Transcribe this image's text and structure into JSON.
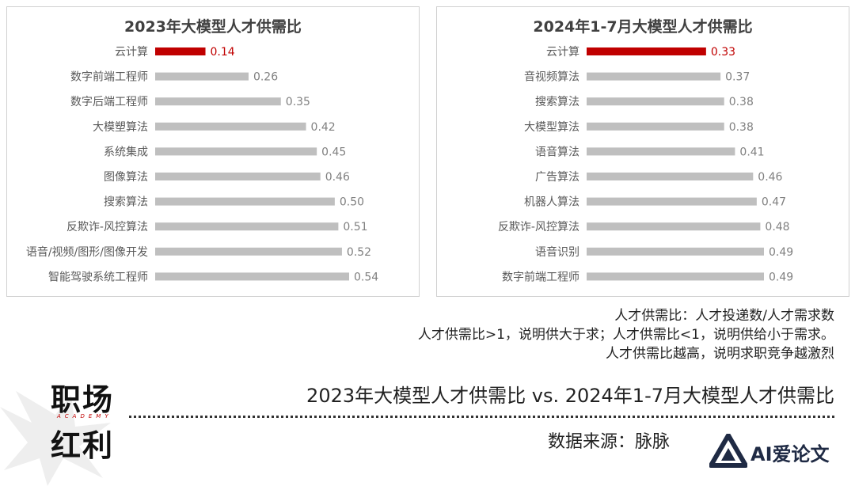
{
  "chart_data": [
    {
      "type": "bar",
      "orientation": "horizontal",
      "title": "2023年大模型人才供需比",
      "categories": [
        "云计算",
        "数字前端工程师",
        "数字后端工程师",
        "大模塑算法",
        "系统集成",
        "图像算法",
        "搜索算法",
        "反欺诈-风控算法",
        "语音/视频/图形/图像开发",
        "智能驾驶系统工程师"
      ],
      "values": [
        0.14,
        0.26,
        0.35,
        0.42,
        0.45,
        0.46,
        0.5,
        0.51,
        0.52,
        0.54
      ],
      "value_labels": [
        "0.14",
        "0.26",
        "0.35",
        "0.42",
        "0.45",
        "0.46",
        "0.50",
        "0.51",
        "0.52",
        "0.54"
      ],
      "highlight_index": 0,
      "xlim": [
        0,
        0.54
      ],
      "grid": false
    },
    {
      "type": "bar",
      "orientation": "horizontal",
      "title": "2024年1-7月大模型人才供需比",
      "categories": [
        "云计算",
        "音视频算法",
        "搜索算法",
        "大模型算法",
        "语音算法",
        "广告算法",
        "机器人算法",
        "反欺诈-风控算法",
        "语音识别",
        "数字前端工程师"
      ],
      "values": [
        0.33,
        0.37,
        0.38,
        0.38,
        0.41,
        0.46,
        0.47,
        0.48,
        0.49,
        0.49
      ],
      "value_labels": [
        "0.33",
        "0.37",
        "0.38",
        "0.38",
        "0.41",
        "0.46",
        "0.47",
        "0.48",
        "0.49",
        "0.49"
      ],
      "highlight_index": 0,
      "xlim": [
        0,
        0.49
      ],
      "grid": false
    }
  ],
  "colors": {
    "bar": "#bfbfbf",
    "highlight": "#c00000"
  },
  "notes": [
    "人才供需比：人才投递数/人才需求数",
    "人才供需比>1，说明供大于求；人才供需比<1，说明供给小于需求。",
    "人才供需比越高，说明求职竞争越激烈"
  ],
  "logo": {
    "line1": "职场",
    "line2": "红利",
    "sub": "ACADEMY"
  },
  "subtitle": "2023年大模型人才供需比 vs. 2024年1-7月大模型人才供需比",
  "source": "数据来源：脉脉",
  "watermark": "AI爱论文"
}
